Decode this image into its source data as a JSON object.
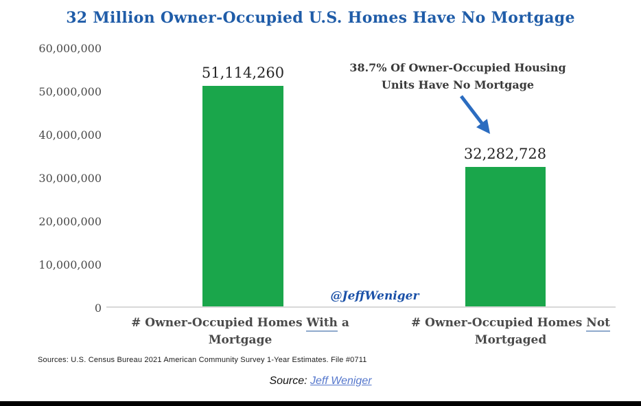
{
  "title": "32 Million Owner-Occupied U.S. Homes Have No Mortgage",
  "chart_data": {
    "type": "bar",
    "title": "32 Million Owner-Occupied U.S. Homes Have No Mortgage",
    "categories": [
      "# Owner-Occupied Homes With a Mortgage",
      "# Owner-Occupied Homes Not Mortgaged"
    ],
    "values": [
      51114260,
      32282728
    ],
    "value_labels": [
      "51,114,260",
      "32,282,728"
    ],
    "yticks": [
      "60,000,000",
      "50,000,000",
      "40,000,000",
      "30,000,000",
      "20,000,000",
      "10,000,000",
      "0"
    ],
    "ylim": [
      0,
      60000000
    ],
    "xlabel": "",
    "ylabel": "",
    "grid": false,
    "legend": "none",
    "annotation": "38.7% Of Owner-Occupied Housing Units Have No Mortgage",
    "bar_color": "#1AA64B"
  },
  "annotation": {
    "line1": "38.7% Of Owner-Occupied Housing",
    "line2": "Units Have No Mortgage"
  },
  "xlabels": [
    {
      "pre": "# Owner-Occupied Homes ",
      "underlined": "With",
      "post": " a",
      "line2": "Mortgage"
    },
    {
      "pre": "# Owner-Occupied Homes ",
      "underlined": "Not",
      "post": "",
      "line2": "Mortgaged"
    }
  ],
  "watermark": "@JeffWeniger",
  "sources_note": "Sources: U.S. Census Bureau 2021 American Community Survey 1-Year Estimates. File #0711",
  "footer": {
    "source_label": "Source:",
    "source_link": "Jeff Weniger"
  },
  "colors": {
    "title_blue": "#1F5CA8",
    "bar_green": "#1AA64B",
    "arrow_blue": "#2B6CC0",
    "watermark_blue": "#1B51A8",
    "link_blue": "#5577CC",
    "axis_text": "#4A4A4A",
    "value_text": "#262626",
    "annotation_text": "#3A3A3A",
    "baseline_gray": "#D8D8D8",
    "underline_blue": "#8EA9CC"
  }
}
